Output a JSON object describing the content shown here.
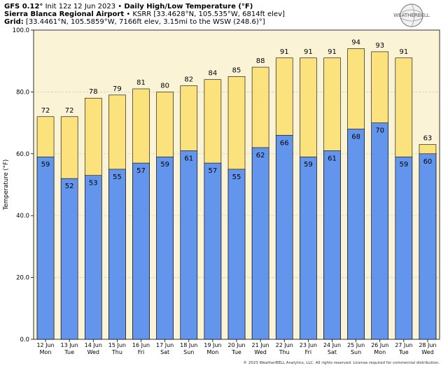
{
  "header": {
    "model": "GFS 0.12°",
    "init": "Init 12z 12 Jun 2023",
    "sep": "•",
    "title": "Daily High/Low Temperature (°F)",
    "station_name": "Sierra Blanca Regional Airport",
    "station_info": "KSRR [33.4628°N, 105.535°W, 6814ft elev]",
    "grid_label": "Grid:",
    "grid_info": "[33.4461°N, 105.5859°W, 7166ft elev, 3.15mi to the WSW (248.6)°]"
  },
  "logo": {
    "name": "WEATHERBELL",
    "icon": "globe-logo-icon"
  },
  "footer": "© 2023 WeatherBELL Analytics, LLC. All rights reserved. License required for commercial distribution.",
  "colors": {
    "high": "#fbe27c",
    "low": "#6495ed",
    "plot_bg": "#fbf3d6",
    "grid": "#c8c8c8"
  },
  "chart_data": {
    "type": "bar",
    "ylabel": "Temperature (°F)",
    "ylim": [
      0,
      100
    ],
    "yticks": [
      "0.0",
      "20.0",
      "40.0",
      "60.0",
      "80.0",
      "100.0"
    ],
    "grid": true,
    "categories": [
      {
        "date": "12 Jun",
        "day": "Mon"
      },
      {
        "date": "13 Jun",
        "day": "Tue"
      },
      {
        "date": "14 Jun",
        "day": "Wed"
      },
      {
        "date": "15 Jun",
        "day": "Thu"
      },
      {
        "date": "16 Jun",
        "day": "Fri"
      },
      {
        "date": "17 Jun",
        "day": "Sat"
      },
      {
        "date": "18 Jun",
        "day": "Sun"
      },
      {
        "date": "19 Jun",
        "day": "Mon"
      },
      {
        "date": "20 Jun",
        "day": "Tue"
      },
      {
        "date": "21 Jun",
        "day": "Wed"
      },
      {
        "date": "22 Jun",
        "day": "Thu"
      },
      {
        "date": "23 Jun",
        "day": "Fri"
      },
      {
        "date": "24 Jun",
        "day": "Sat"
      },
      {
        "date": "25 Jun",
        "day": "Sun"
      },
      {
        "date": "26 Jun",
        "day": "Mon"
      },
      {
        "date": "27 Jun",
        "day": "Tue"
      },
      {
        "date": "28 Jun",
        "day": "Wed"
      }
    ],
    "series": [
      {
        "values": [
          72,
          72,
          78,
          79,
          81,
          80,
          82,
          84,
          85,
          88,
          91,
          91,
          91,
          94,
          93,
          91,
          63
        ]
      },
      {
        "values": [
          59,
          52,
          53,
          55,
          57,
          59,
          61,
          57,
          55,
          62,
          66,
          59,
          61,
          68,
          70,
          59,
          60
        ]
      }
    ]
  }
}
